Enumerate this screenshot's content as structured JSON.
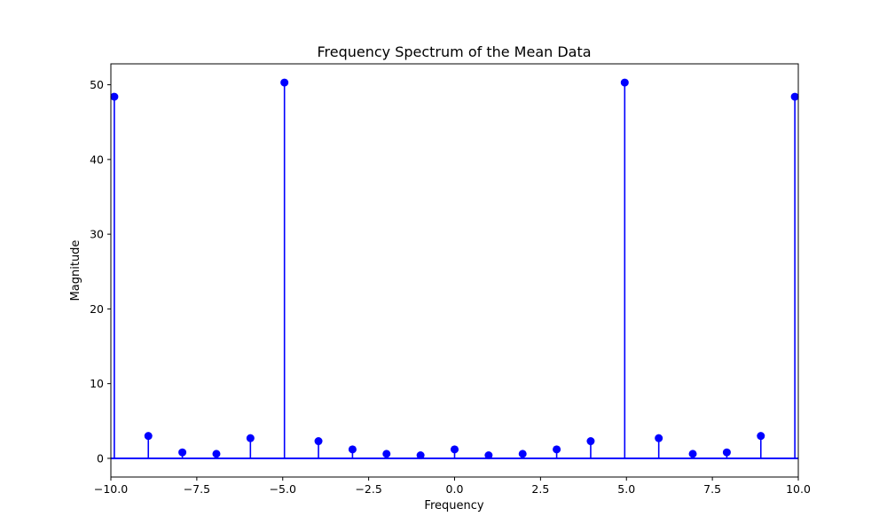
{
  "chart_data": {
    "type": "stem",
    "title": "Frequency Spectrum of the Mean Data",
    "xlabel": "Frequency",
    "ylabel": "Magnitude",
    "xlim": [
      -10.0,
      10.0
    ],
    "ylim": [
      -2.5,
      52.8
    ],
    "x_ticks": [
      -10.0,
      -7.5,
      -5.0,
      -2.5,
      0.0,
      2.5,
      5.0,
      7.5,
      10.0
    ],
    "x_tick_labels": [
      "−10.0",
      "−7.5",
      "−5.0",
      "−2.5",
      "0.0",
      "2.5",
      "5.0",
      "7.5",
      "10.0"
    ],
    "y_ticks": [
      0,
      10,
      20,
      30,
      40,
      50
    ],
    "y_tick_labels": [
      "0",
      "10",
      "20",
      "30",
      "40",
      "50"
    ],
    "color": "#0000ff",
    "baseline": 0,
    "grid": false,
    "x": [
      -9.9,
      -8.91,
      -7.92,
      -6.93,
      -5.94,
      -4.95,
      -3.96,
      -2.97,
      -1.98,
      -0.99,
      0.0,
      0.99,
      1.98,
      2.97,
      3.96,
      4.95,
      5.94,
      6.93,
      7.92,
      8.91,
      9.9
    ],
    "y": [
      48.4,
      3.0,
      0.8,
      0.6,
      2.7,
      50.3,
      2.3,
      1.2,
      0.6,
      0.4,
      1.2,
      0.4,
      0.6,
      1.2,
      2.3,
      50.3,
      2.7,
      0.6,
      0.8,
      3.0,
      48.4
    ]
  }
}
